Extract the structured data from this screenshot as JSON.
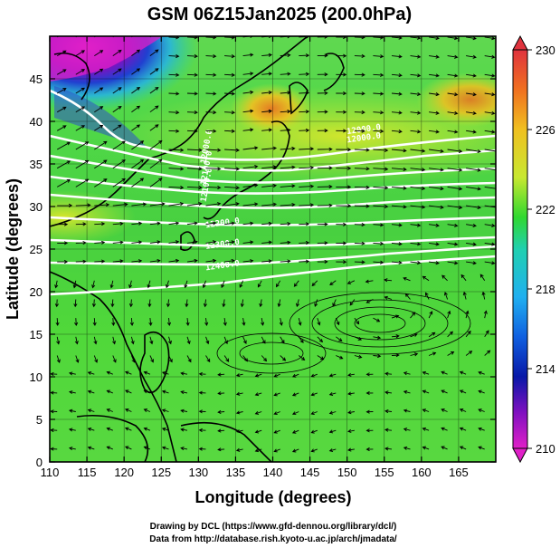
{
  "title": "GSM 06Z15Jan2025 (200.0hPa)",
  "axes": {
    "xlabel": "Longitude (degrees)",
    "ylabel": "Latitude  (degrees)",
    "xticks": [
      "110",
      "115",
      "120",
      "125",
      "130",
      "135",
      "140",
      "145",
      "150",
      "155",
      "160",
      "165"
    ],
    "yticks": [
      "0",
      "5",
      "10",
      "15",
      "20",
      "25",
      "30",
      "35",
      "40",
      "45"
    ],
    "xrange": [
      110,
      170
    ],
    "yrange": [
      0,
      50
    ]
  },
  "colorbar": {
    "labels": [
      "230",
      "226",
      "222",
      "218",
      "214",
      "210"
    ],
    "colors": [
      "#e0333e",
      "#f07020",
      "#f0c020",
      "#c8e830",
      "#30d830",
      "#20d0b0",
      "#20b0f0",
      "#1060e0",
      "#0818a8",
      "#8010c0",
      "#e020c8"
    ]
  },
  "contour_labels": [
    "12000.0",
    "12000.0",
    "12000.0",
    "12100.0",
    "12100.0",
    "12200.0",
    "12300.0",
    "12400.0"
  ],
  "credits": {
    "line1": "Drawing by DCL (https://www.gfd-dennou.org/library/dcl/)",
    "line2": "Data from http://database.rish.kyoto-u.ac.jp/arch/jmadata/"
  }
}
